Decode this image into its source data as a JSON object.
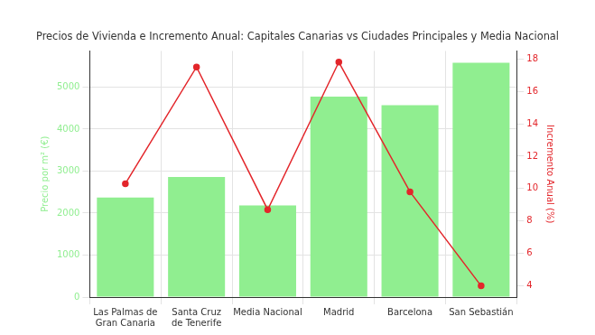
{
  "chart_data": {
    "type": "bar",
    "title": "Precios de Vivienda e Incremento Anual: Capitales Canarias vs Ciudades Principales y Media Nacional",
    "categories": [
      "Las Palmas de Gran Canaria",
      "Santa Cruz de Tenerife",
      "Media Nacional",
      "Madrid",
      "Barcelona",
      "San Sebastián"
    ],
    "y_label": "Precio por m² (€)",
    "y2_label": "Incremento Anual (%)",
    "series": [
      {
        "type": "bar",
        "color": "#90ee90",
        "values": [
          2370,
          2860,
          2180,
          4770,
          4570,
          5580
        ]
      },
      {
        "type": "line",
        "color": "#e3262b",
        "marker": "circle",
        "axis": "y2",
        "values": [
          10.3,
          17.5,
          8.7,
          17.8,
          9.8,
          4.0
        ]
      }
    ],
    "ylim": [
      0,
      5860
    ],
    "yticks": [
      0,
      1000,
      2000,
      3000,
      4000,
      5000
    ],
    "y2lim": [
      3.31,
      18.49
    ],
    "y2ticks": [
      4,
      6,
      8,
      10,
      12,
      14,
      16,
      18
    ],
    "grid": true
  }
}
